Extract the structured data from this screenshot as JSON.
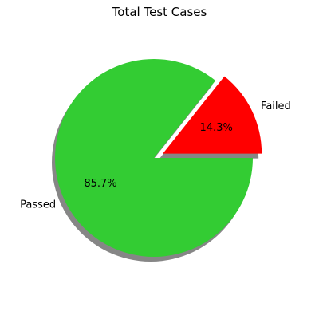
{
  "chart_data": {
    "type": "pie",
    "title": "Total Test Cases",
    "slices": [
      {
        "label": "Passed",
        "percent_label": "85.7%",
        "value": 85.7,
        "color": "#33cc33",
        "exploded": false
      },
      {
        "label": "Failed",
        "percent_label": "14.3%",
        "value": 14.3,
        "color": "#ff0000",
        "exploded": true
      }
    ],
    "shadow": true,
    "start_angle_deg": 0,
    "direction": "clockwise"
  }
}
